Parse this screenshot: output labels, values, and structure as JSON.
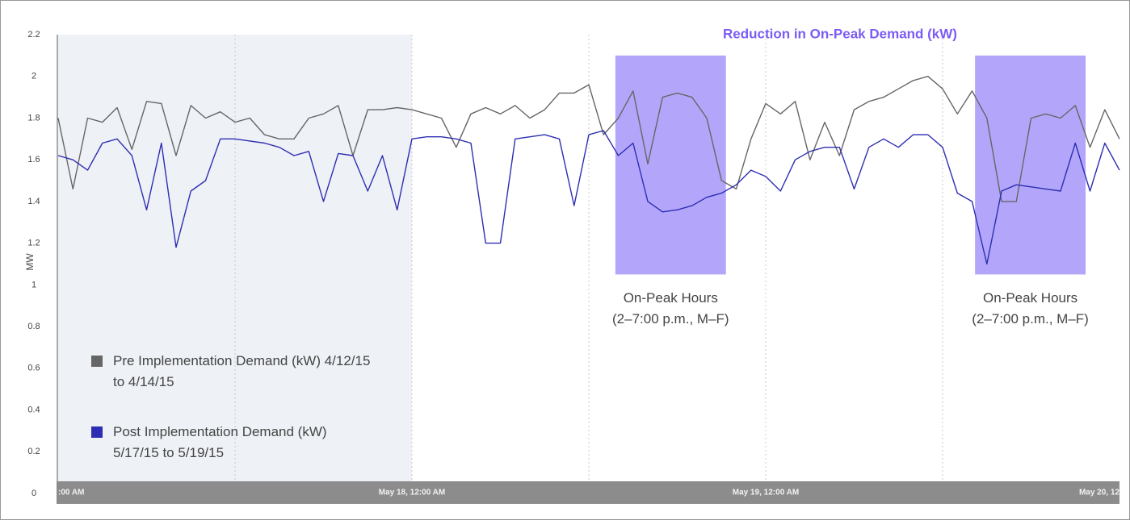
{
  "chart_data": {
    "type": "line",
    "title": "Reduction in On-Peak Demand (kW)",
    "y_label": "MW",
    "x": [
      0,
      1,
      2,
      3,
      4,
      5,
      6,
      7,
      8,
      9,
      10,
      11,
      12,
      13,
      14,
      15,
      16,
      17,
      18,
      19,
      20,
      21,
      22,
      23,
      24,
      25,
      26,
      27,
      28,
      29,
      30,
      31,
      32,
      33,
      34,
      35,
      36,
      37,
      38,
      39,
      40,
      41,
      42,
      43,
      44,
      45,
      46,
      47,
      48,
      49,
      50,
      51,
      52,
      53,
      54,
      55,
      56,
      57,
      58,
      59,
      60,
      61,
      62,
      63,
      64,
      65,
      66,
      67,
      68,
      69,
      70,
      71,
      72
    ],
    "xlim": [
      0,
      72
    ],
    "xticks": [
      {
        "value": 0,
        "label": ":00 AM"
      },
      {
        "value": 24,
        "label": "May 18, 12:00 AM"
      },
      {
        "value": 48,
        "label": "May 19, 12:00 AM"
      },
      {
        "value": 72,
        "label": "May 20, 12"
      }
    ],
    "xgrid": [
      12,
      24,
      36,
      48,
      60
    ],
    "ylim": [
      0,
      2.2
    ],
    "yticks": [
      0,
      0.2,
      0.4,
      0.6,
      0.8,
      1,
      1.2,
      1.4,
      1.6,
      1.8,
      2,
      2.2
    ],
    "series": [
      {
        "name": "Pre Implementation Demand (kW) 4/12/15 to 4/14/15",
        "color": "#666666",
        "values": [
          1.8,
          1.46,
          1.8,
          1.78,
          1.85,
          1.65,
          1.88,
          1.87,
          1.62,
          1.86,
          1.8,
          1.83,
          1.78,
          1.8,
          1.72,
          1.7,
          1.7,
          1.8,
          1.82,
          1.86,
          1.62,
          1.84,
          1.84,
          1.85,
          1.84,
          1.82,
          1.8,
          1.66,
          1.82,
          1.85,
          1.82,
          1.86,
          1.8,
          1.84,
          1.92,
          1.92,
          1.96,
          1.72,
          1.8,
          1.93,
          1.58,
          1.9,
          1.92,
          1.9,
          1.8,
          1.5,
          1.46,
          1.7,
          1.87,
          1.82,
          1.88,
          1.6,
          1.78,
          1.62,
          1.84,
          1.88,
          1.9,
          1.94,
          1.98,
          2.0,
          1.94,
          1.82,
          1.93,
          1.8,
          1.4,
          1.4,
          1.8,
          1.82,
          1.8,
          1.86,
          1.66,
          1.84,
          1.7
        ]
      },
      {
        "name": "Post Implementation Demand (kW) 5/17/15 to 5/19/15",
        "color": "#2e2eb2",
        "values": [
          1.62,
          1.6,
          1.55,
          1.68,
          1.7,
          1.62,
          1.36,
          1.68,
          1.18,
          1.45,
          1.5,
          1.7,
          1.7,
          1.69,
          1.68,
          1.66,
          1.62,
          1.64,
          1.4,
          1.63,
          1.62,
          1.45,
          1.62,
          1.36,
          1.7,
          1.71,
          1.71,
          1.7,
          1.68,
          1.2,
          1.2,
          1.7,
          1.71,
          1.72,
          1.7,
          1.38,
          1.72,
          1.74,
          1.62,
          1.68,
          1.4,
          1.35,
          1.36,
          1.38,
          1.42,
          1.44,
          1.48,
          1.55,
          1.52,
          1.45,
          1.6,
          1.64,
          1.66,
          1.66,
          1.46,
          1.66,
          1.7,
          1.66,
          1.72,
          1.72,
          1.66,
          1.44,
          1.4,
          1.1,
          1.45,
          1.48,
          1.47,
          1.46,
          1.45,
          1.68,
          1.45,
          1.68,
          1.55
        ]
      }
    ],
    "highlights": [
      {
        "x": [
          37.8,
          45.3
        ],
        "y": [
          1.05,
          2.1
        ],
        "color": "#b3a6fa",
        "label": [
          "On-Peak Hours",
          "(2–7:00 p.m., M–F)"
        ]
      },
      {
        "x": [
          62.2,
          69.7
        ],
        "y": [
          1.05,
          2.1
        ],
        "color": "#b3a6fa",
        "label": [
          "On-Peak Hours",
          "(2–7:00 p.m., M–F)"
        ]
      }
    ],
    "shaded_x": [
      0,
      24
    ]
  }
}
